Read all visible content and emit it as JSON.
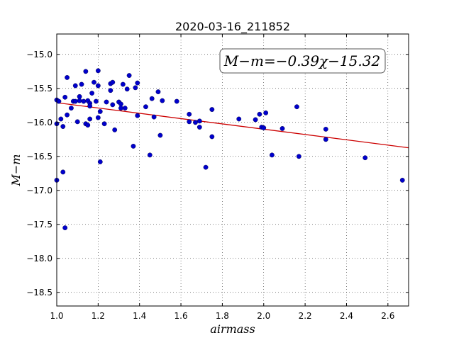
{
  "chart_data": {
    "type": "scatter",
    "title": "2020-03-16_211852",
    "xlabel": "airmass",
    "ylabel": "M−m",
    "xlim": [
      1.0,
      2.7
    ],
    "ylim": [
      -18.7,
      -14.7
    ],
    "y_inverted": true,
    "grid": true,
    "xticks": [
      1.0,
      1.2,
      1.4,
      1.6,
      1.8,
      2.0,
      2.2,
      2.4,
      2.6
    ],
    "xtick_labels": [
      "1.0",
      "1.2",
      "1.4",
      "1.6",
      "1.8",
      "2.0",
      "2.2",
      "2.4",
      "2.6"
    ],
    "yticks": [
      -15.0,
      -15.5,
      -16.0,
      -16.5,
      -17.0,
      -17.5,
      -18.0,
      -18.5
    ],
    "ytick_labels": [
      "−15.0",
      "−15.5",
      "−16.0",
      "−16.5",
      "−17.0",
      "−17.5",
      "−18.0",
      "−18.5"
    ],
    "annotation": "M−m=−0.39χ−15.32",
    "fit": {
      "slope": -0.39,
      "intercept": -15.32,
      "color": "#cc0000"
    },
    "point_color": "#0000cc",
    "points": [
      [
        1.0,
        -15.67
      ],
      [
        1.0,
        -16.02
      ],
      [
        1.0,
        -16.85
      ],
      [
        1.01,
        -15.69
      ],
      [
        1.02,
        -15.95
      ],
      [
        1.03,
        -16.06
      ],
      [
        1.03,
        -16.73
      ],
      [
        1.04,
        -15.63
      ],
      [
        1.04,
        -17.55
      ],
      [
        1.05,
        -15.34
      ],
      [
        1.05,
        -15.89
      ],
      [
        1.07,
        -15.79
      ],
      [
        1.08,
        -15.69
      ],
      [
        1.09,
        -15.46
      ],
      [
        1.09,
        -15.69
      ],
      [
        1.1,
        -15.99
      ],
      [
        1.11,
        -15.62
      ],
      [
        1.11,
        -15.68
      ],
      [
        1.12,
        -15.44
      ],
      [
        1.13,
        -15.69
      ],
      [
        1.14,
        -15.25
      ],
      [
        1.14,
        -16.02
      ],
      [
        1.15,
        -15.68
      ],
      [
        1.15,
        -16.04
      ],
      [
        1.16,
        -15.72
      ],
      [
        1.16,
        -15.76
      ],
      [
        1.16,
        -15.95
      ],
      [
        1.17,
        -15.57
      ],
      [
        1.18,
        -15.41
      ],
      [
        1.19,
        -15.69
      ],
      [
        1.2,
        -15.24
      ],
      [
        1.2,
        -15.46
      ],
      [
        1.2,
        -15.93
      ],
      [
        1.21,
        -15.84
      ],
      [
        1.21,
        -16.58
      ],
      [
        1.23,
        -16.02
      ],
      [
        1.24,
        -15.7
      ],
      [
        1.26,
        -15.43
      ],
      [
        1.26,
        -15.53
      ],
      [
        1.27,
        -15.41
      ],
      [
        1.27,
        -15.74
      ],
      [
        1.28,
        -16.11
      ],
      [
        1.3,
        -15.7
      ],
      [
        1.31,
        -15.73
      ],
      [
        1.31,
        -15.79
      ],
      [
        1.32,
        -15.44
      ],
      [
        1.33,
        -15.79
      ],
      [
        1.34,
        -15.51
      ],
      [
        1.35,
        -15.31
      ],
      [
        1.37,
        -16.35
      ],
      [
        1.38,
        -15.49
      ],
      [
        1.39,
        -15.42
      ],
      [
        1.39,
        -15.9
      ],
      [
        1.43,
        -15.77
      ],
      [
        1.45,
        -16.48
      ],
      [
        1.46,
        -15.65
      ],
      [
        1.47,
        -15.92
      ],
      [
        1.49,
        -15.55
      ],
      [
        1.5,
        -16.19
      ],
      [
        1.51,
        -15.68
      ],
      [
        1.58,
        -15.69
      ],
      [
        1.64,
        -15.88
      ],
      [
        1.64,
        -15.99
      ],
      [
        1.67,
        -16.0
      ],
      [
        1.69,
        -15.98
      ],
      [
        1.69,
        -16.07
      ],
      [
        1.72,
        -16.66
      ],
      [
        1.75,
        -15.81
      ],
      [
        1.75,
        -16.21
      ],
      [
        1.88,
        -15.95
      ],
      [
        1.96,
        -15.96
      ],
      [
        1.98,
        -15.88
      ],
      [
        1.99,
        -16.07
      ],
      [
        2.0,
        -16.08
      ],
      [
        2.01,
        -15.86
      ],
      [
        2.04,
        -16.48
      ],
      [
        2.09,
        -16.09
      ],
      [
        2.16,
        -15.77
      ],
      [
        2.17,
        -16.5
      ],
      [
        2.3,
        -16.1
      ],
      [
        2.3,
        -16.25
      ],
      [
        2.49,
        -16.52
      ],
      [
        2.67,
        -16.85
      ]
    ]
  }
}
